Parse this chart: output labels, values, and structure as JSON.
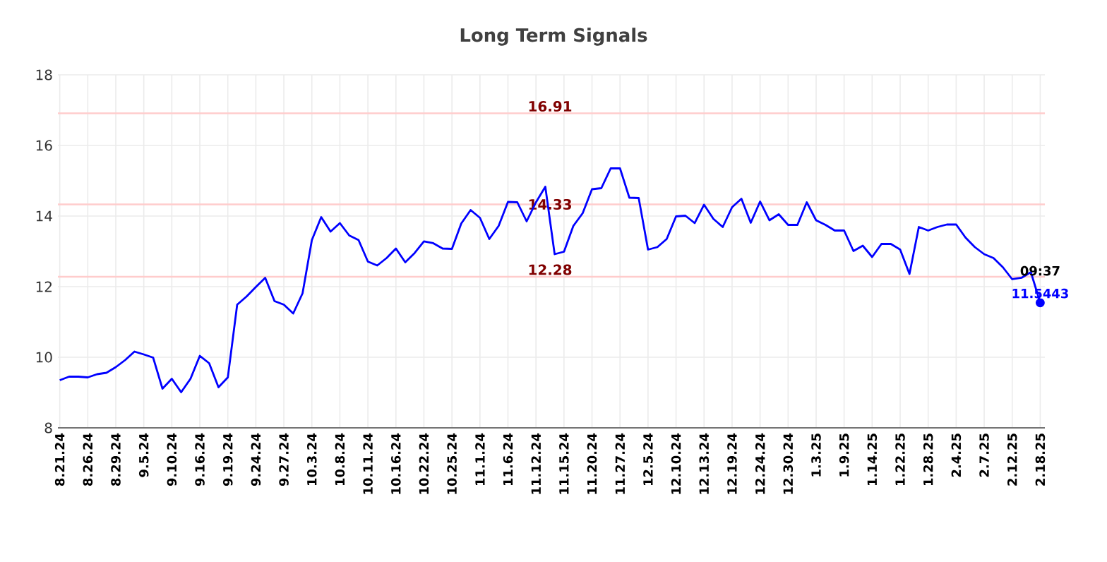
{
  "chart_data": {
    "type": "line",
    "title": "Long Term Signals",
    "categories": [
      "8.21.24",
      null,
      null,
      "8.26.24",
      null,
      null,
      "8.29.24",
      null,
      null,
      "9.5.24",
      null,
      null,
      "9.10.24",
      null,
      null,
      "9.16.24",
      null,
      null,
      "9.19.24",
      null,
      null,
      "9.24.24",
      null,
      null,
      "9.27.24",
      null,
      null,
      "10.3.24",
      null,
      null,
      "10.8.24",
      null,
      null,
      "10.11.24",
      null,
      null,
      "10.16.24",
      null,
      null,
      "10.22.24",
      null,
      null,
      "10.25.24",
      null,
      null,
      "11.1.24",
      null,
      null,
      "11.6.24",
      null,
      null,
      "11.12.24",
      null,
      null,
      "11.15.24",
      null,
      null,
      "11.20.24",
      null,
      null,
      "11.27.24",
      null,
      null,
      "12.5.24",
      null,
      null,
      "12.10.24",
      null,
      null,
      "12.13.24",
      null,
      null,
      "12.19.24",
      null,
      null,
      "12.24.24",
      null,
      null,
      "12.30.24",
      null,
      null,
      "1.3.25",
      null,
      null,
      "1.9.25",
      null,
      null,
      "1.14.25",
      null,
      null,
      "1.22.25",
      null,
      null,
      "1.28.25",
      null,
      null,
      "2.4.25",
      null,
      null,
      "2.7.25",
      null,
      null,
      "2.12.25",
      null,
      null,
      "2.18.25"
    ],
    "series": [
      {
        "color": "#0000ff",
        "values": [
          9.35,
          9.45,
          9.45,
          9.43,
          9.52,
          9.56,
          9.72,
          9.92,
          10.16,
          10.08,
          9.99,
          9.11,
          9.39,
          9.01,
          9.39,
          10.04,
          9.83,
          9.15,
          9.43,
          11.49,
          11.72,
          11.99,
          12.25,
          11.59,
          11.49,
          11.24,
          11.81,
          13.32,
          13.97,
          13.56,
          13.8,
          13.45,
          13.32,
          12.71,
          12.6,
          12.81,
          13.08,
          12.69,
          12.95,
          13.28,
          13.23,
          13.08,
          13.07,
          13.79,
          14.17,
          13.95,
          13.35,
          13.72,
          14.4,
          14.39,
          13.85,
          14.39,
          14.83,
          12.92,
          12.99,
          13.72,
          14.08,
          14.76,
          14.79,
          15.35,
          15.35,
          14.52,
          14.51,
          13.05,
          13.12,
          13.35,
          13.99,
          14.01,
          13.8,
          14.32,
          13.92,
          13.69,
          14.25,
          14.49,
          13.81,
          14.41,
          13.88,
          14.05,
          13.75,
          13.75,
          14.39,
          13.88,
          13.75,
          13.59,
          13.59,
          13.01,
          13.16,
          12.84,
          13.21,
          13.21,
          13.05,
          12.36,
          13.69,
          13.59,
          13.69,
          13.76,
          13.76,
          13.39,
          13.12,
          12.92,
          12.81,
          12.55,
          12.21,
          12.25,
          12.41,
          11.5443
        ]
      }
    ],
    "ylim": [
      8,
      18
    ],
    "yticks": [
      8,
      10,
      12,
      14,
      16,
      18
    ],
    "grid": true,
    "marker": "none",
    "line_style": "solid",
    "ref_lines": [
      {
        "axis": "y",
        "value": 16.91,
        "label": "16.91",
        "color": "#ffcccc"
      },
      {
        "axis": "y",
        "value": 14.33,
        "label": "14.33",
        "color": "#ffcccc"
      },
      {
        "axis": "y",
        "value": 12.28,
        "label": "12.28",
        "color": "#ffcccc"
      }
    ],
    "annotations": [
      "09:37",
      {
        "text": "11.5443",
        "y": 11.5443
      }
    ]
  }
}
